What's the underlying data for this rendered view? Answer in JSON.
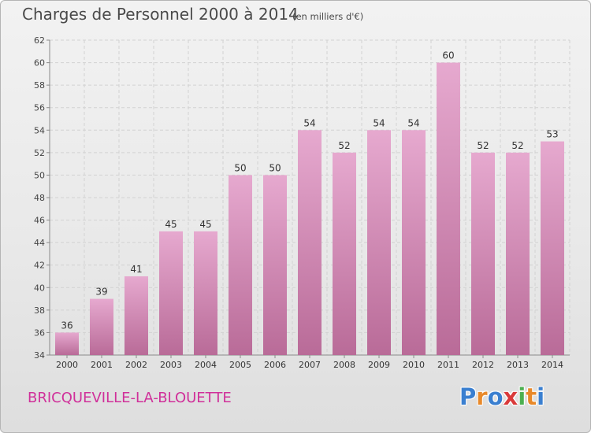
{
  "header": {
    "title": "Charges de Personnel 2000 à 2014",
    "subtitle": "(en milliers d'€)"
  },
  "footer": {
    "town": "BRICQUEVILLE-LA-BLOUETTE",
    "logo": [
      "P",
      "r",
      "o",
      "x",
      "i",
      "t",
      "i"
    ]
  },
  "colors": {
    "bar_top": "#e6a9cf",
    "bar_bottom": "#b96b98",
    "title": "#4a4a4a",
    "town": "#d0309a",
    "logo": [
      "#3a7fd0",
      "#e8892a",
      "#3a7fd0",
      "#d93a3a",
      "#4caf50",
      "#e8892a",
      "#3a7fd0"
    ]
  },
  "chart_data": {
    "type": "bar",
    "categories": [
      "2000",
      "2001",
      "2002",
      "2003",
      "2004",
      "2005",
      "2006",
      "2007",
      "2008",
      "2009",
      "2010",
      "2011",
      "2012",
      "2013",
      "2014"
    ],
    "values": [
      36,
      39,
      41,
      45,
      45,
      50,
      50,
      54,
      52,
      54,
      54,
      60,
      52,
      52,
      53
    ],
    "title": "Charges de Personnel 2000 à 2014",
    "subtitle": "(en milliers d'€)",
    "ylim": [
      34,
      62
    ],
    "yticks": [
      34,
      36,
      38,
      40,
      42,
      44,
      46,
      48,
      50,
      52,
      54,
      56,
      58,
      60,
      62
    ],
    "grid": true,
    "data_labels": true
  }
}
